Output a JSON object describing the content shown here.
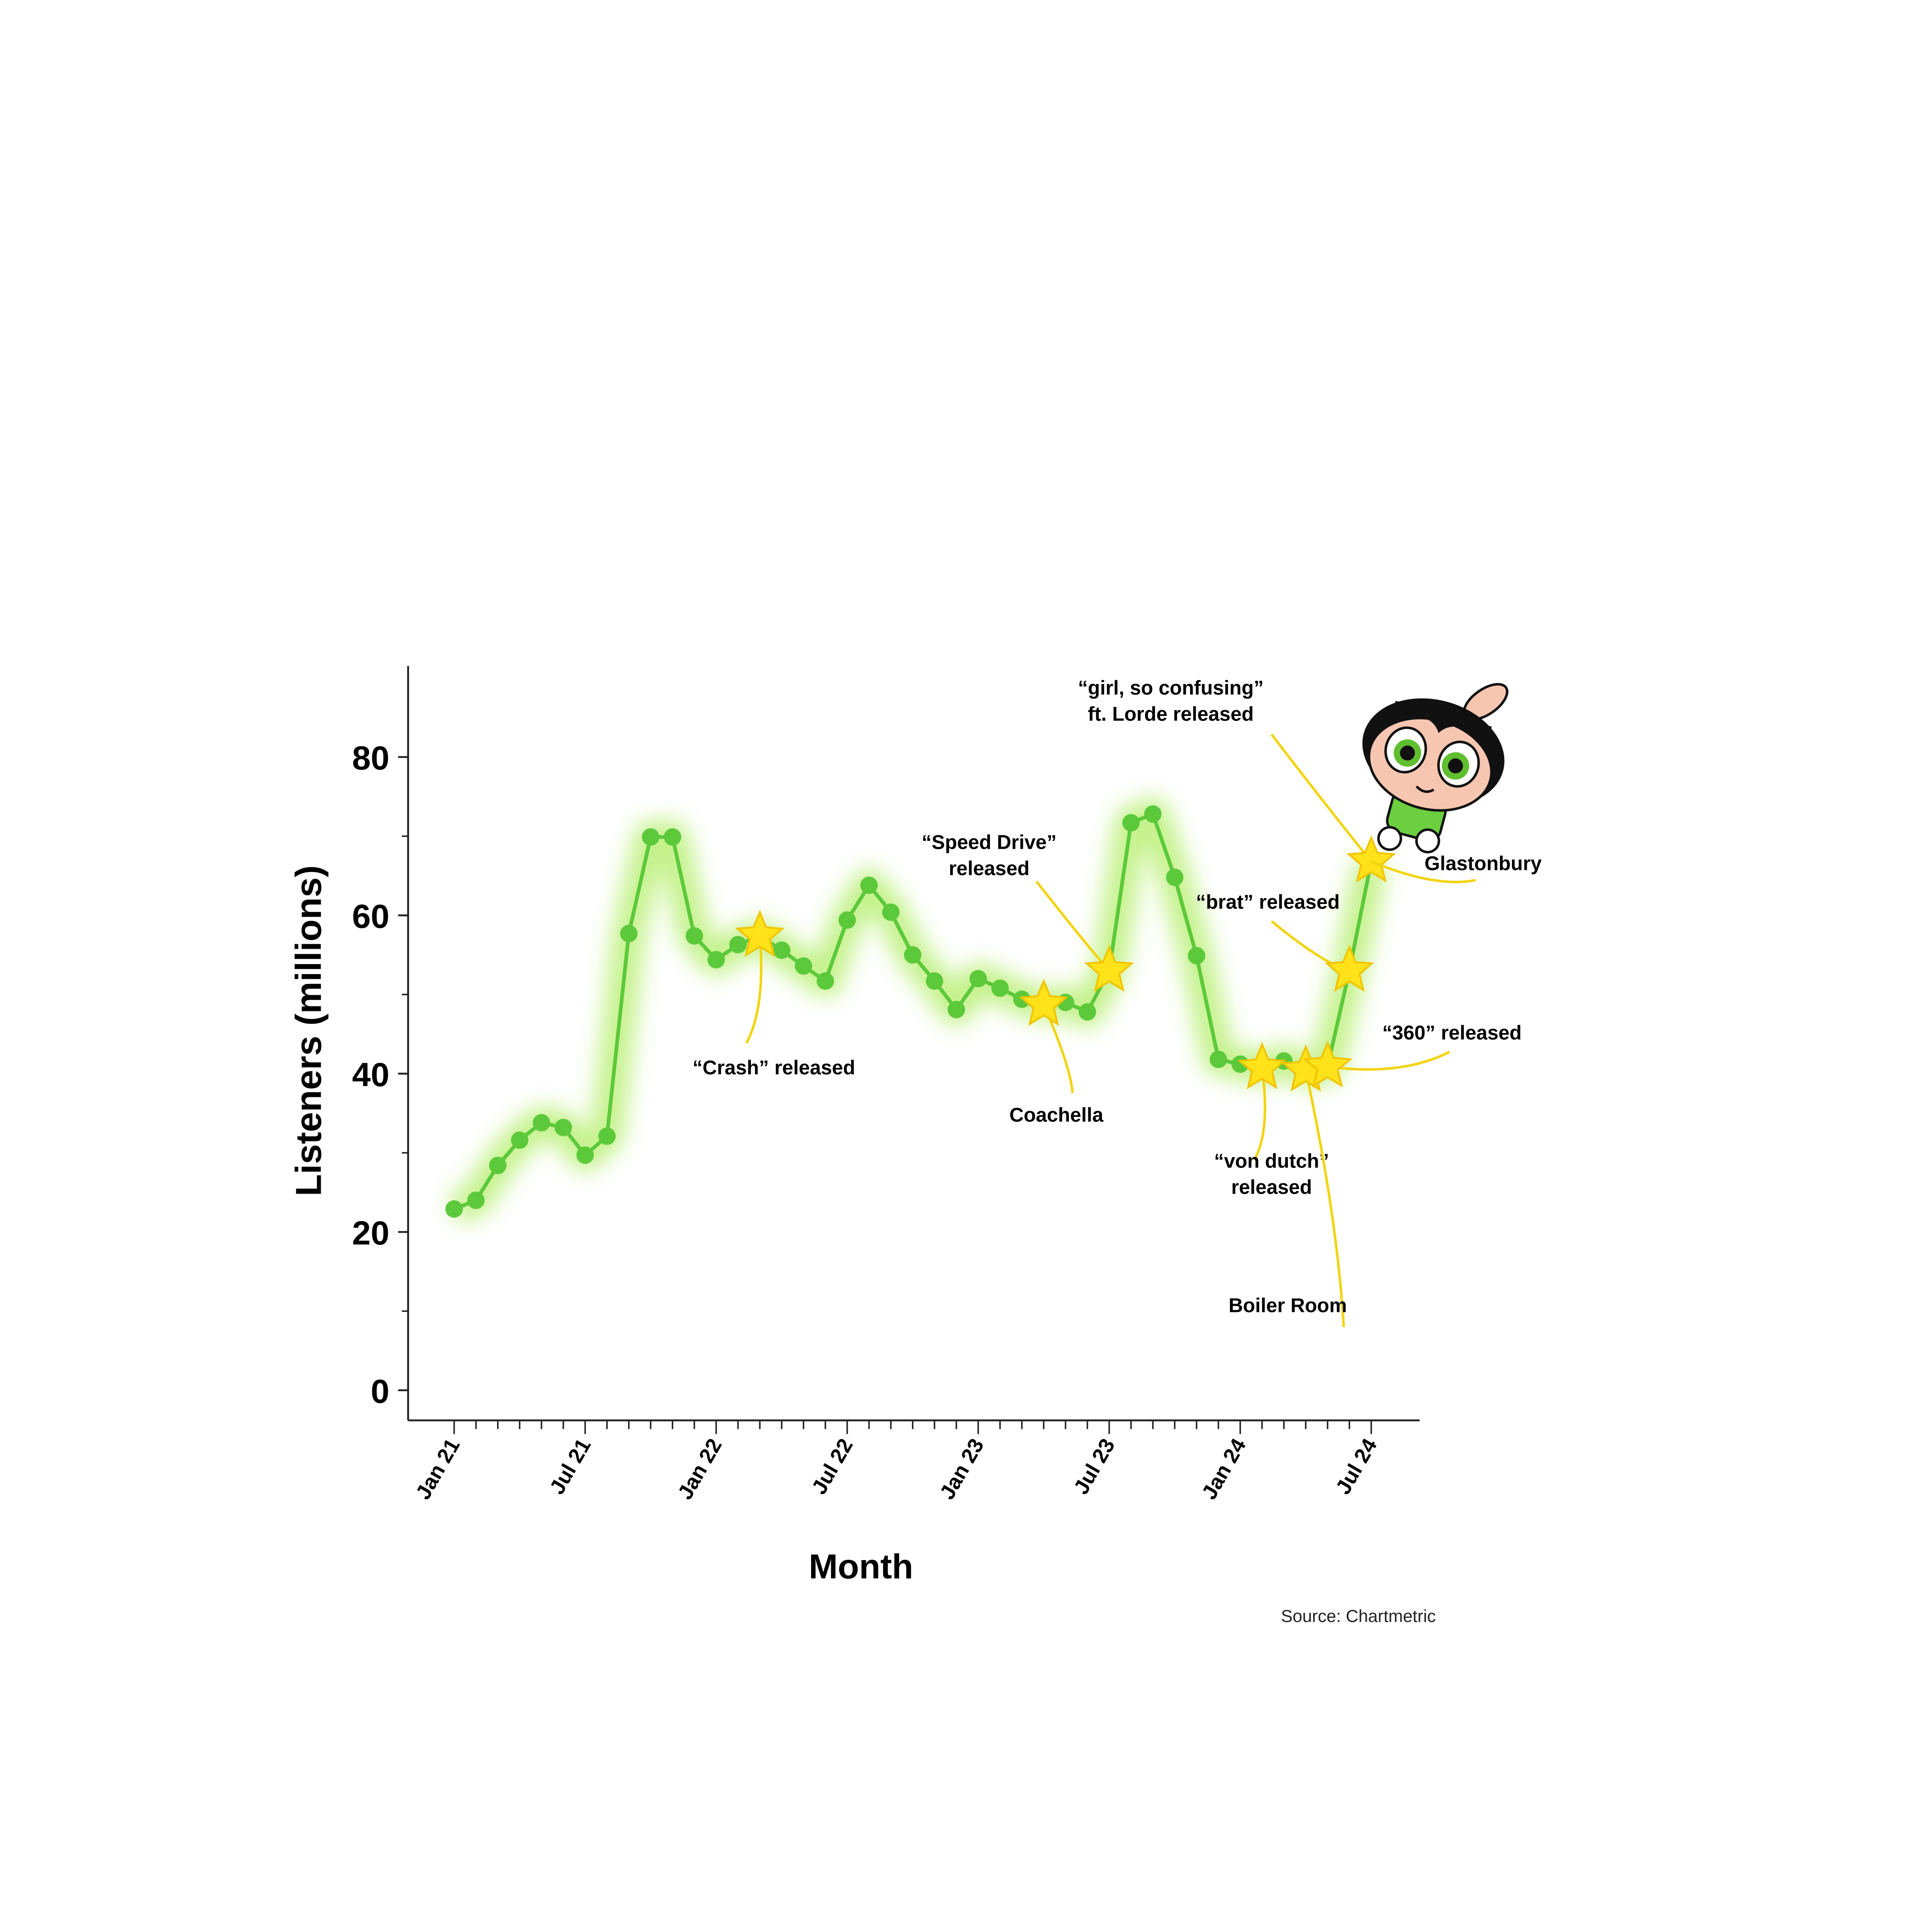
{
  "chart_data": {
    "type": "line",
    "x_label": "Month",
    "y_label": "Listeners (millions)",
    "source": "Source: Chartmetric",
    "categories": [
      "Jan 21",
      null,
      null,
      null,
      null,
      null,
      "Jul 21",
      null,
      null,
      null,
      null,
      null,
      "Jan 22",
      null,
      null,
      null,
      null,
      null,
      "Jul 22",
      null,
      null,
      null,
      null,
      null,
      "Jan 23",
      null,
      null,
      null,
      null,
      null,
      "Jul 23",
      null,
      null,
      null,
      null,
      null,
      "Jan 24",
      null,
      null,
      null,
      null,
      null,
      "Jul 24"
    ],
    "series": [
      {
        "name": "Listeners",
        "color": "#5cc93a",
        "values": [
          22.9,
          24.0,
          28.4,
          31.6,
          33.8,
          33.2,
          29.7,
          32.1,
          57.7,
          69.9,
          69.9,
          57.4,
          54.4,
          56.3,
          57.4,
          55.6,
          53.6,
          51.7,
          59.4,
          63.8,
          60.4,
          55.0,
          51.7,
          48.1,
          52.0,
          50.8,
          49.4,
          48.7,
          49.0,
          47.8,
          53.0,
          71.7,
          72.8,
          64.8,
          54.9,
          41.8,
          41.2,
          40.7,
          41.6,
          40.4,
          40.9,
          53.0,
          66.8
        ]
      }
    ],
    "ylim": [
      -3.8,
      91.5
    ],
    "yticks": [
      0,
      20,
      40,
      60,
      80
    ],
    "yticks_minor": [
      10,
      30,
      50,
      70
    ],
    "glow": true,
    "annotations": [
      {
        "text": [
          "“Crash” released"
        ],
        "point": 14,
        "star": true
      },
      {
        "text": [
          "Coachella"
        ],
        "point": 27,
        "star": true
      },
      {
        "text": [
          "“Speed Drive”",
          "released"
        ],
        "point": 30,
        "star": true
      },
      {
        "text": [
          "“von dutch”",
          "released"
        ],
        "point": 37,
        "star": true
      },
      {
        "text": [
          "Boiler Room"
        ],
        "point": 39,
        "star": true
      },
      {
        "text": [
          "“360” released"
        ],
        "point": 40,
        "star": true
      },
      {
        "text": [
          "“brat” released"
        ],
        "point": 41,
        "star": true
      },
      {
        "text": [
          "“girl, so confusing”",
          "ft. Lorde released"
        ],
        "point": 42,
        "star": true
      },
      {
        "text": [
          "Glastonbury"
        ],
        "point": 42,
        "star": false
      }
    ]
  }
}
